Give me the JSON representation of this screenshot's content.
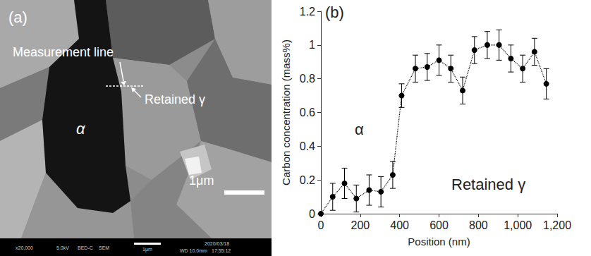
{
  "micrograph": {
    "panel_label": "(a)",
    "annotations": [
      "Measurement line",
      "Retained γ",
      "α"
    ],
    "scale_bar": "1μm",
    "info_bar": [
      "x20,000",
      "5.0kV",
      "BED-C",
      "SEM",
      "1μm",
      "2020/03/18",
      "WD 10.0mm",
      "17:55:12"
    ]
  },
  "chart_data": {
    "type": "line",
    "panel_label": "(b)",
    "x_label": "Position (nm)",
    "y_label": "Carbon concentration (mass%)",
    "annotations": [
      "α",
      "Retained γ"
    ],
    "x": [
      0,
      60,
      120,
      180,
      245,
      305,
      365,
      410,
      480,
      540,
      600,
      660,
      720,
      780,
      845,
      905,
      965,
      1025,
      1085,
      1145
    ],
    "series": [
      {
        "color": "#000000",
        "marker": "circle",
        "line_style": "dotted",
        "values": [
          0,
          0.1,
          0.18,
          0.09,
          0.14,
          0.13,
          0.23,
          0.7,
          0.86,
          0.87,
          0.91,
          0.86,
          0.73,
          0.97,
          1.0,
          1.0,
          0.92,
          0.86,
          0.96,
          0.77
        ],
        "errors": [
          null,
          0.08,
          0.09,
          0.08,
          0.09,
          0.09,
          0.08,
          0.07,
          0.08,
          0.08,
          0.09,
          0.08,
          0.08,
          0.08,
          0.08,
          0.09,
          0.08,
          0.08,
          0.08,
          0.09
        ]
      }
    ],
    "xlim": [
      0,
      1200
    ],
    "xticks": [
      0,
      200,
      400,
      600,
      800,
      {
        "value": 1000,
        "label": "1,000"
      },
      {
        "value": 1200,
        "label": "1,200"
      }
    ],
    "ylim": [
      0,
      1.2
    ],
    "yticks": [
      0,
      0.2,
      0.4,
      0.6,
      0.8,
      1,
      1.2
    ],
    "grid": false
  }
}
